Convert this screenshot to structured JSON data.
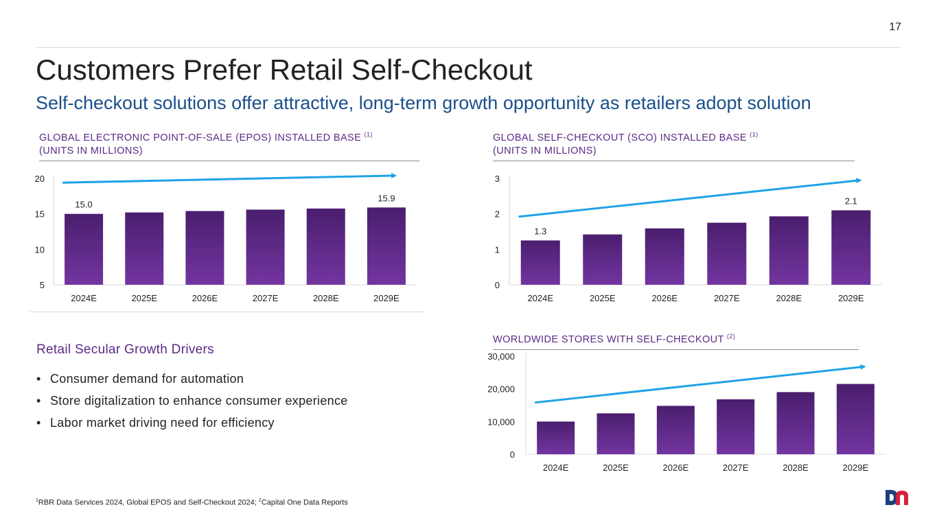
{
  "page_number": "17",
  "title": "Customers Prefer Retail Self-Checkout",
  "subtitle": "Self-checkout solutions offer attractive, long-term growth opportunity as retailers adopt solution",
  "panels": {
    "epos": {
      "heading_line1": "GLOBAL ELECTRONIC POINT-OF-SALE (EPOS) INSTALLED BASE",
      "heading_sup": "(1)",
      "heading_line2": "(UNITS IN MILLIONS)"
    },
    "sco": {
      "heading_line1": "GLOBAL SELF-CHECKOUT (SCO) INSTALLED BASE",
      "heading_sup": "(1)",
      "heading_line2": "(UNITS IN MILLIONS)"
    },
    "stores": {
      "heading_line1": "WORLDWIDE STORES WITH SELF-CHECKOUT",
      "heading_sup": "(2)"
    }
  },
  "drivers": {
    "title": "Retail Secular Growth Drivers",
    "items": [
      "Consumer demand for automation",
      "Store digitalization to enhance consumer experience",
      "Labor market driving need for efficiency"
    ]
  },
  "footnote": {
    "sup1": "1",
    "text1": "RBR Data Services 2024, Global EPOS and Self-Checkout 2024; ",
    "sup2": "2",
    "text2": "Capital One Data Reports"
  },
  "colors": {
    "bar_top": "#4a1e6e",
    "bar_bottom": "#7335a0",
    "arrow": "#1ea3e6",
    "heading": "#5b2a86",
    "subtitle": "#1a4f8b"
  },
  "chart_data": [
    {
      "id": "epos",
      "type": "bar",
      "title": "GLOBAL ELECTRONIC POINT-OF-SALE (EPOS) INSTALLED BASE (1) (UNITS IN MILLIONS)",
      "categories": [
        "2024E",
        "2025E",
        "2026E",
        "2027E",
        "2028E",
        "2029E"
      ],
      "values": [
        15.0,
        15.2,
        15.4,
        15.6,
        15.75,
        15.9
      ],
      "data_labels": [
        "15.0",
        "",
        "",
        "",
        "",
        "15.9"
      ],
      "ylim": [
        5,
        20
      ],
      "yticks": [
        5,
        10,
        15,
        20
      ],
      "ytick_labels": [
        "5",
        "10",
        "15",
        "20"
      ],
      "trend_arrow": {
        "from": 19.4,
        "to": 20.4
      }
    },
    {
      "id": "sco",
      "type": "bar",
      "title": "GLOBAL SELF-CHECKOUT (SCO) INSTALLED BASE (1) (UNITS IN MILLIONS)",
      "categories": [
        "2024E",
        "2025E",
        "2026E",
        "2027E",
        "2028E",
        "2029E"
      ],
      "values": [
        1.25,
        1.42,
        1.59,
        1.75,
        1.93,
        2.1
      ],
      "data_labels": [
        "1.3",
        "",
        "",
        "",
        "",
        "2.1"
      ],
      "ylim": [
        0,
        3
      ],
      "yticks": [
        0,
        1,
        2,
        3
      ],
      "ytick_labels": [
        "0",
        "1",
        "2",
        "3"
      ],
      "trend_arrow": {
        "from": 1.92,
        "to": 2.95
      }
    },
    {
      "id": "stores",
      "type": "bar",
      "title": "WORLDWIDE STORES WITH SELF-CHECKOUT (2)",
      "categories": [
        "2024E",
        "2025E",
        "2026E",
        "2027E",
        "2028E",
        "2029E"
      ],
      "values": [
        10000,
        12500,
        14800,
        16800,
        19000,
        21500
      ],
      "data_labels": [
        "",
        "",
        "",
        "",
        "",
        ""
      ],
      "ylim": [
        0,
        30000
      ],
      "yticks": [
        0,
        10000,
        20000,
        30000
      ],
      "ytick_labels": [
        "0",
        "10,000",
        "20,000",
        "30,000"
      ],
      "trend_arrow": {
        "from": 15800,
        "to": 26800
      }
    }
  ]
}
